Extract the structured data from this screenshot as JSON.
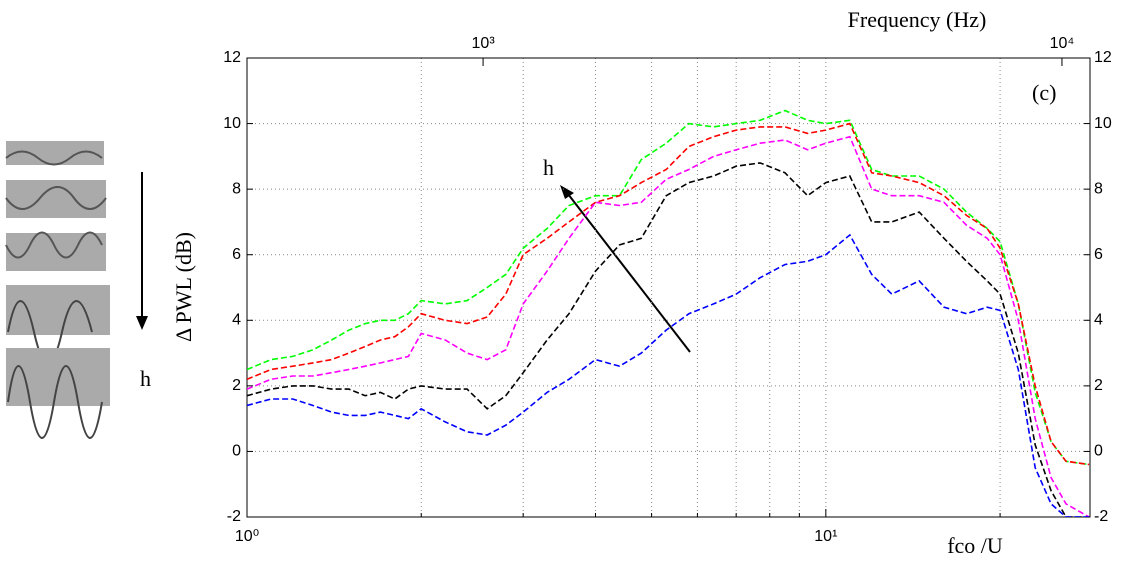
{
  "chart_data": {
    "type": "line",
    "xscale": "log",
    "xlabel": "fco /U",
    "x2label": "Frequency (Hz)",
    "ylabel": "Δ PWL (dB)",
    "annotations": [
      "(c)",
      "h",
      "h"
    ],
    "xlim": [
      1,
      28.6
    ],
    "xticks": [
      {
        "value": 1,
        "label": "10⁰"
      },
      {
        "value": 10,
        "label": "10¹"
      }
    ],
    "xminorticks": [
      2,
      3,
      4,
      5,
      6,
      7,
      8,
      9,
      20
    ],
    "x2lim": [
      391,
      11180
    ],
    "x2ticks": [
      {
        "value": 1000,
        "label": "10³"
      },
      {
        "value": 10000,
        "label": "10⁴"
      }
    ],
    "ylim": [
      -2,
      12
    ],
    "yticks": [
      -2,
      0,
      2,
      4,
      6,
      8,
      10,
      12
    ],
    "grid": true,
    "x": [
      1,
      1.1,
      1.2,
      1.3,
      1.4,
      1.5,
      1.6,
      1.7,
      1.8,
      1.9,
      2,
      2.2,
      2.4,
      2.6,
      2.8,
      3,
      3.3,
      3.6,
      4,
      4.4,
      4.8,
      5.3,
      5.8,
      6.4,
      7,
      7.7,
      8.5,
      9.3,
      10,
      11,
      12,
      13,
      14.5,
      16,
      17.5,
      19,
      20,
      21.5,
      23,
      24.5,
      26,
      28.5
    ],
    "series": [
      {
        "color": "#00ff00",
        "values": [
          2.5,
          2.8,
          2.9,
          3.1,
          3.4,
          3.7,
          3.9,
          4.0,
          4.0,
          4.2,
          4.6,
          4.5,
          4.6,
          5.0,
          5.4,
          6.2,
          6.8,
          7.5,
          7.8,
          7.8,
          8.9,
          9.4,
          10.0,
          9.9,
          10.0,
          10.1,
          10.4,
          10.1,
          10.0,
          10.1,
          8.6,
          8.4,
          8.4,
          8.0,
          7.3,
          6.8,
          6.4,
          4.5,
          1.8,
          0.3,
          -0.3,
          -0.4
        ]
      },
      {
        "color": "#ff0000",
        "values": [
          2.2,
          2.5,
          2.6,
          2.7,
          2.8,
          3.0,
          3.2,
          3.4,
          3.5,
          3.8,
          4.2,
          4.0,
          3.9,
          4.1,
          4.8,
          6.0,
          6.5,
          7.0,
          7.6,
          7.8,
          8.2,
          8.6,
          9.3,
          9.6,
          9.8,
          9.9,
          9.9,
          9.7,
          9.8,
          10.0,
          8.5,
          8.4,
          8.2,
          7.8,
          7.2,
          6.8,
          6.2,
          4.5,
          2.0,
          0.3,
          -0.3,
          -0.4
        ]
      },
      {
        "color": "#ff00ff",
        "values": [
          1.9,
          2.2,
          2.3,
          2.3,
          2.4,
          2.5,
          2.6,
          2.7,
          2.8,
          2.9,
          3.6,
          3.4,
          3.0,
          2.8,
          3.1,
          4.5,
          5.5,
          6.5,
          7.6,
          7.5,
          7.6,
          8.3,
          8.6,
          9.0,
          9.2,
          9.4,
          9.5,
          9.2,
          9.4,
          9.6,
          8.0,
          7.8,
          7.8,
          7.6,
          6.9,
          6.5,
          6.0,
          4.0,
          1.0,
          -0.8,
          -1.6,
          -2
        ]
      },
      {
        "color": "#000000",
        "values": [
          1.7,
          1.9,
          2.0,
          2.0,
          1.9,
          1.9,
          1.7,
          1.8,
          1.6,
          1.9,
          2.0,
          1.9,
          1.9,
          1.3,
          1.7,
          2.4,
          3.4,
          4.2,
          5.5,
          6.3,
          6.5,
          7.8,
          8.2,
          8.4,
          8.7,
          8.8,
          8.5,
          7.8,
          8.2,
          8.4,
          7.0,
          7.0,
          7.3,
          6.5,
          5.8,
          5.2,
          4.8,
          3.0,
          0.2,
          -1.2,
          -2.0,
          -2
        ]
      },
      {
        "color": "#0000ff",
        "values": [
          1.4,
          1.6,
          1.6,
          1.4,
          1.2,
          1.1,
          1.1,
          1.2,
          1.1,
          1.0,
          1.3,
          0.9,
          0.6,
          0.5,
          0.8,
          1.2,
          1.8,
          2.2,
          2.8,
          2.6,
          3.0,
          3.7,
          4.2,
          4.5,
          4.8,
          5.3,
          5.7,
          5.8,
          6.0,
          6.6,
          5.4,
          4.8,
          5.2,
          4.4,
          4.2,
          4.4,
          4.3,
          2.5,
          -0.5,
          -1.6,
          -2.0,
          -2
        ]
      }
    ]
  }
}
